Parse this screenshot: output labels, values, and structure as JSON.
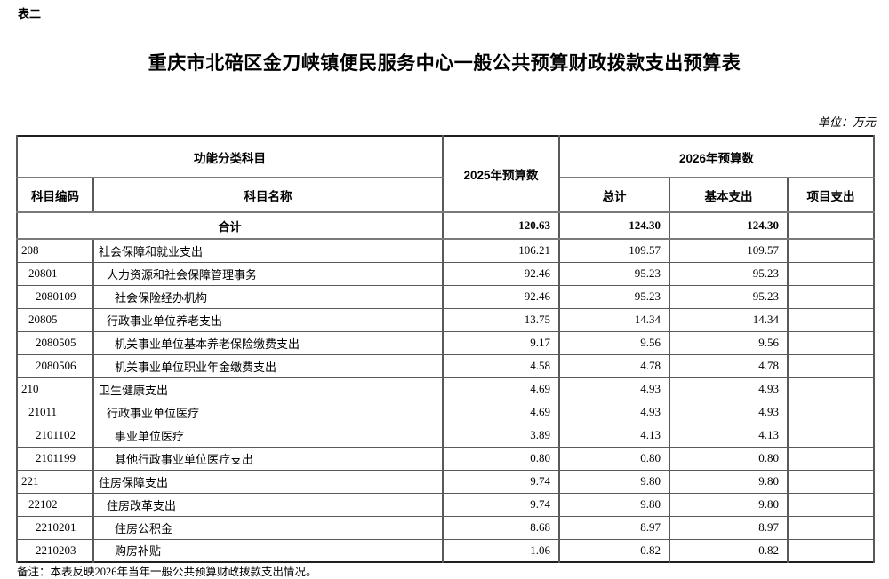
{
  "page": {
    "corner_label": "表二",
    "title": "重庆市北碚区金刀峡镇便民服务中心一般公共预算财政拨款支出预算表",
    "unit_label": "单位：万元",
    "footnote": "备注：本表反映2026年当年一般公共预算财政拨款支出情况。"
  },
  "table": {
    "headers": {
      "function_category": "功能分类科目",
      "budget_2025": "2025年预算数",
      "budget_2026": "2026年预算数",
      "subject_code": "科目编码",
      "subject_name": "科目名称",
      "total": "总计",
      "basic_expenditure": "基本支出",
      "project_expenditure": "项目支出"
    },
    "total_row": {
      "label": "合计",
      "y2025": "120.63",
      "total": "124.30",
      "basic": "124.30",
      "project": ""
    },
    "rows": [
      {
        "code": "208",
        "name": "社会保障和就业支出",
        "indent": 0,
        "y2025": "106.21",
        "total": "109.57",
        "basic": "109.57",
        "project": ""
      },
      {
        "code": "20801",
        "name": "人力资源和社会保障管理事务",
        "indent": 1,
        "y2025": "92.46",
        "total": "95.23",
        "basic": "95.23",
        "project": ""
      },
      {
        "code": "2080109",
        "name": "社会保险经办机构",
        "indent": 2,
        "y2025": "92.46",
        "total": "95.23",
        "basic": "95.23",
        "project": ""
      },
      {
        "code": "20805",
        "name": "行政事业单位养老支出",
        "indent": 1,
        "y2025": "13.75",
        "total": "14.34",
        "basic": "14.34",
        "project": ""
      },
      {
        "code": "2080505",
        "name": "机关事业单位基本养老保险缴费支出",
        "indent": 2,
        "y2025": "9.17",
        "total": "9.56",
        "basic": "9.56",
        "project": ""
      },
      {
        "code": "2080506",
        "name": "机关事业单位职业年金缴费支出",
        "indent": 2,
        "y2025": "4.58",
        "total": "4.78",
        "basic": "4.78",
        "project": ""
      },
      {
        "code": "210",
        "name": "卫生健康支出",
        "indent": 0,
        "y2025": "4.69",
        "total": "4.93",
        "basic": "4.93",
        "project": ""
      },
      {
        "code": "21011",
        "name": "行政事业单位医疗",
        "indent": 1,
        "y2025": "4.69",
        "total": "4.93",
        "basic": "4.93",
        "project": ""
      },
      {
        "code": "2101102",
        "name": "事业单位医疗",
        "indent": 2,
        "y2025": "3.89",
        "total": "4.13",
        "basic": "4.13",
        "project": ""
      },
      {
        "code": "2101199",
        "name": "其他行政事业单位医疗支出",
        "indent": 2,
        "y2025": "0.80",
        "total": "0.80",
        "basic": "0.80",
        "project": ""
      },
      {
        "code": "221",
        "name": "住房保障支出",
        "indent": 0,
        "y2025": "9.74",
        "total": "9.80",
        "basic": "9.80",
        "project": ""
      },
      {
        "code": "22102",
        "name": "住房改革支出",
        "indent": 1,
        "y2025": "9.74",
        "total": "9.80",
        "basic": "9.80",
        "project": ""
      },
      {
        "code": "2210201",
        "name": "住房公积金",
        "indent": 2,
        "y2025": "8.68",
        "total": "8.97",
        "basic": "8.97",
        "project": ""
      },
      {
        "code": "2210203",
        "name": "购房补贴",
        "indent": 2,
        "y2025": "1.06",
        "total": "0.82",
        "basic": "0.82",
        "project": ""
      }
    ]
  }
}
